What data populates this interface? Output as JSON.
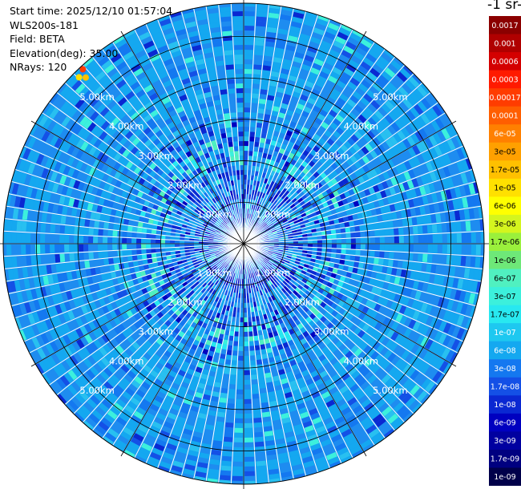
{
  "info": {
    "start_time": "Start time: 2025/12/10 01:57:04",
    "instrument": "WLS200s-181",
    "field": "Field: BETA",
    "elevation": "Elevation(deg): 35.00",
    "nrays": "NRays: 120"
  },
  "colorbar": {
    "title": "-1 sr-",
    "labels": [
      "0.0017",
      "0.001",
      "0.0006",
      "0.0003",
      "0.00017",
      "0.0001",
      "6e-05",
      "3e-05",
      "1.7e-05",
      "1e-05",
      "6e-06",
      "3e-06",
      "1.7e-06",
      "1e-06",
      "6e-07",
      "3e-07",
      "1.7e-07",
      "1e-07",
      "6e-08",
      "3e-08",
      "1.7e-08",
      "1e-08",
      "6e-09",
      "3e-09",
      "1.7e-09",
      "1e-09"
    ],
    "colors": [
      "#8b0000",
      "#b00000",
      "#d40000",
      "#ff1a00",
      "#ff3c00",
      "#ff5e00",
      "#ff8000",
      "#ffa000",
      "#ffc000",
      "#ffe000",
      "#ffff00",
      "#d4f51e",
      "#9af03c",
      "#6ee878",
      "#50f0c0",
      "#3cf0dc",
      "#28e8f0",
      "#1ec8f0",
      "#14a8f0",
      "#1478f0",
      "#1450e6",
      "#0a28d2",
      "#0000c0",
      "#0000a0",
      "#000080",
      "#00004a"
    ]
  },
  "chart_data": {
    "type": "heatmap",
    "projection": "polar",
    "title": "",
    "nrays": 120,
    "max_range_km": 5.8,
    "range_rings_km": [
      1,
      2,
      3,
      4,
      5
    ],
    "range_labels": [
      "1.00km",
      "2.00km",
      "3.00km",
      "4.00km",
      "5.00km"
    ],
    "value_scale": "log",
    "vmin": 1e-09,
    "vmax": 0.0017,
    "field": "BETA"
  }
}
